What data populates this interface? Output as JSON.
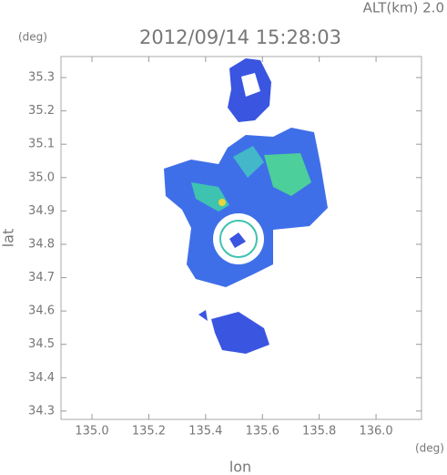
{
  "chart_data": {
    "type": "radar-map",
    "title": "2012/09/14 15:28:03",
    "altitude_label": "ALT(km)  2.0",
    "y_unit": "(deg)",
    "x_unit": "(deg)",
    "x_label": "lon",
    "y_label": "lat",
    "xlim": [
      134.891,
      136.16
    ],
    "xticks": [
      {
        "value": 135.0,
        "label": "135.0"
      },
      135.2,
      135.4,
      135.6,
      135.8,
      {
        "value": 136.0,
        "label": "136.0"
      }
    ],
    "ylim": [
      34.275,
      35.363
    ],
    "yticks": [
      35.3,
      35.2,
      35.1,
      {
        "value": 35.0,
        "label": "35.0"
      },
      34.9,
      34.8,
      34.7,
      34.6,
      34.5,
      34.4,
      34.3
    ]
  }
}
